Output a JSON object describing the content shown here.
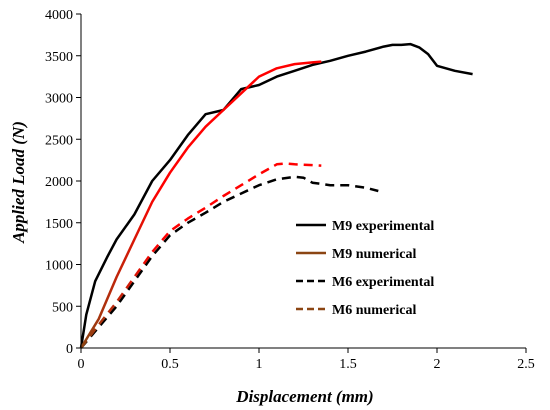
{
  "chart_data": {
    "type": "line",
    "xlabel": "Displacement (mm)",
    "ylabel": "Applied Load (N)",
    "xlim": [
      0,
      2.5
    ],
    "ylim": [
      0,
      4000
    ],
    "x_ticks": [
      "0",
      "0.5",
      "1",
      "1.5",
      "2",
      "2.5"
    ],
    "y_ticks": [
      "0",
      "500",
      "1000",
      "1500",
      "2000",
      "2500",
      "3000",
      "3500",
      "4000"
    ],
    "x_tick_values": [
      0,
      0.5,
      1,
      1.5,
      2,
      2.5
    ],
    "y_tick_values": [
      0,
      500,
      1000,
      1500,
      2000,
      2500,
      3000,
      3500,
      4000
    ],
    "grid": false,
    "legend_position": "right-middle",
    "series": [
      {
        "name": "M9 experimental",
        "color": "#000000",
        "dash": "solid",
        "x": [
          0,
          0.03,
          0.08,
          0.15,
          0.2,
          0.3,
          0.4,
          0.5,
          0.6,
          0.7,
          0.8,
          0.9,
          1.0,
          1.1,
          1.2,
          1.3,
          1.4,
          1.5,
          1.6,
          1.7,
          1.75,
          1.8,
          1.85,
          1.9,
          1.95,
          2.0,
          2.1,
          2.2
        ],
        "y": [
          0,
          400,
          800,
          1100,
          1300,
          1600,
          2000,
          2250,
          2550,
          2800,
          2850,
          3100,
          3150,
          3250,
          3320,
          3390,
          3440,
          3500,
          3550,
          3610,
          3630,
          3630,
          3640,
          3600,
          3520,
          3380,
          3320,
          3280
        ]
      },
      {
        "name": "M9 numerical",
        "color": "#ff0000",
        "color_start": "#8b4513",
        "dash": "solid",
        "x": [
          0,
          0.1,
          0.2,
          0.3,
          0.4,
          0.5,
          0.6,
          0.7,
          0.8,
          0.9,
          1.0,
          1.1,
          1.2,
          1.3,
          1.35
        ],
        "y": [
          0,
          350,
          850,
          1300,
          1750,
          2100,
          2400,
          2650,
          2850,
          3050,
          3250,
          3350,
          3400,
          3420,
          3430
        ]
      },
      {
        "name": "M6 experimental",
        "color": "#000000",
        "dash": "dashed",
        "x": [
          0,
          0.1,
          0.2,
          0.3,
          0.4,
          0.5,
          0.6,
          0.7,
          0.8,
          0.9,
          1.0,
          1.1,
          1.2,
          1.25,
          1.3,
          1.4,
          1.5,
          1.6,
          1.67
        ],
        "y": [
          0,
          250,
          500,
          800,
          1100,
          1350,
          1500,
          1620,
          1750,
          1850,
          1950,
          2020,
          2050,
          2040,
          1980,
          1950,
          1950,
          1920,
          1880
        ]
      },
      {
        "name": "M6 numerical",
        "color": "#ff0000",
        "color_start": "#8b4513",
        "dash": "dashed",
        "x": [
          0,
          0.1,
          0.2,
          0.3,
          0.4,
          0.5,
          0.6,
          0.7,
          0.8,
          0.9,
          1.0,
          1.1,
          1.15,
          1.2,
          1.3,
          1.35
        ],
        "y": [
          0,
          280,
          550,
          850,
          1150,
          1400,
          1550,
          1680,
          1820,
          1950,
          2080,
          2200,
          2210,
          2200,
          2190,
          2185
        ]
      }
    ]
  }
}
